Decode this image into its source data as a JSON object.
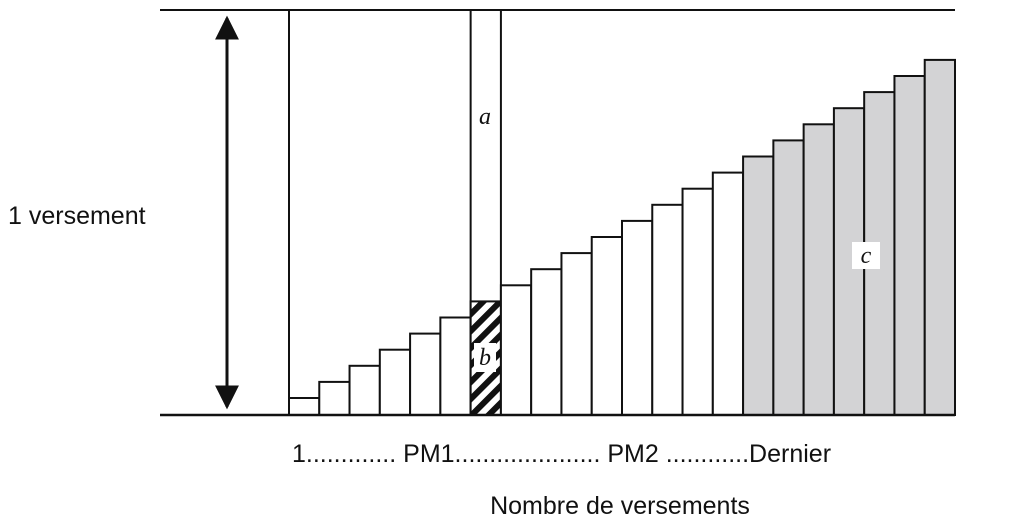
{
  "left_label": "1 versement",
  "regions": {
    "a": "a",
    "b": "b",
    "c": "c"
  },
  "x_axis": {
    "sequence": "1............. PM1..................... PM2 ............Dernier",
    "title": "Nombre de versements"
  }
}
